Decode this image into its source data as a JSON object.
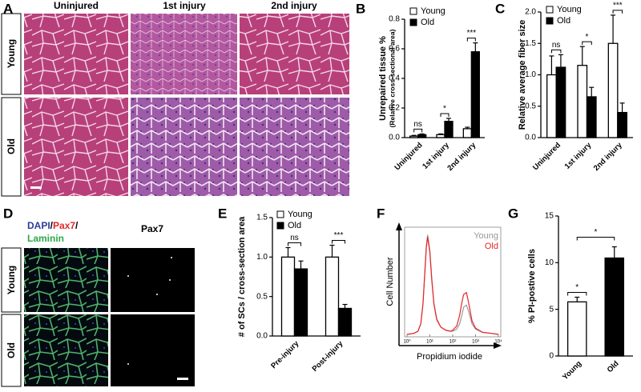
{
  "panel_labels": [
    "A",
    "B",
    "C",
    "D",
    "E",
    "F",
    "G"
  ],
  "figure_a": {
    "columns": [
      "Uninjured",
      "1st injury",
      "2nd injury"
    ],
    "rows": [
      "Young",
      "Old"
    ]
  },
  "figure_d": {
    "stain": [
      "DAPI",
      "/",
      "Pax7",
      "/",
      "Laminin"
    ],
    "channel": "Pax7",
    "rows": [
      "Young",
      "Old"
    ]
  },
  "chart_data": [
    {
      "type": "bar",
      "ylabel": "Unrepaired tissue %",
      "ylabel_sub": "(Relative cross-sectional area)",
      "categories": [
        "Uninjured",
        "1st injury",
        "2nd injury"
      ],
      "series": [
        {
          "name": "Young",
          "color": "#ffffff",
          "values": [
            0.01,
            0.02,
            0.06
          ],
          "errors": [
            0.005,
            0.005,
            0.01
          ]
        },
        {
          "name": "Old",
          "color": "#000000",
          "values": [
            0.02,
            0.11,
            0.58
          ],
          "errors": [
            0.005,
            0.02,
            0.06
          ]
        }
      ],
      "annotations": [
        "ns",
        "*",
        "***"
      ],
      "ylim": [
        0,
        0.8
      ],
      "yticks": [
        {
          "value": 0,
          "label": "0.0"
        },
        {
          "value": 0.2,
          "label": "0.2"
        },
        {
          "value": 0.4,
          "label": "0.4"
        },
        {
          "value": 0.6,
          "label": "0.6"
        },
        {
          "value": 0.8,
          "label": "0.8"
        }
      ]
    },
    {
      "type": "bar",
      "ylabel": "Relative average fiber size",
      "categories": [
        "Uninjured",
        "1st injury",
        "2nd injury"
      ],
      "series": [
        {
          "name": "Young",
          "color": "#ffffff",
          "values": [
            1.0,
            1.15,
            1.5
          ],
          "errors": [
            0.3,
            0.3,
            0.45
          ]
        },
        {
          "name": "Old",
          "color": "#000000",
          "values": [
            1.12,
            0.65,
            0.4
          ],
          "errors": [
            0.2,
            0.15,
            0.15
          ]
        }
      ],
      "annotations": [
        "ns",
        "*",
        "***"
      ],
      "ylim": [
        0,
        2
      ],
      "yticks": [
        {
          "value": 0,
          "label": "0.0"
        },
        {
          "value": 0.5,
          "label": "0.5"
        },
        {
          "value": 1,
          "label": "1.0"
        },
        {
          "value": 1.5,
          "label": "1.5"
        },
        {
          "value": 2,
          "label": "2.0"
        }
      ]
    },
    {
      "type": "bar",
      "ylabel": "# of SCs / cross-section area",
      "categories": [
        "Pre-injury",
        "Post-injury"
      ],
      "series": [
        {
          "name": "Young",
          "color": "#ffffff",
          "values": [
            1.0,
            1.0
          ],
          "errors": [
            0.12,
            0.15
          ]
        },
        {
          "name": "Old",
          "color": "#000000",
          "values": [
            0.85,
            0.35
          ],
          "errors": [
            0.1,
            0.05
          ]
        }
      ],
      "annotations": [
        "ns",
        "***"
      ],
      "ylim": [
        0,
        1.5
      ],
      "yticks": [
        {
          "value": 0,
          "label": "0.0"
        },
        {
          "value": 0.5,
          "label": "0.5"
        },
        {
          "value": 1,
          "label": "1.0"
        },
        {
          "value": 1.5,
          "label": "1.5"
        }
      ]
    },
    {
      "type": "line",
      "xlabel": "Propidium iodide",
      "ylabel": "Cell Number",
      "log_x": true,
      "legend": "upper right",
      "x": [
        1,
        2,
        3,
        4,
        5,
        6,
        7,
        8,
        10,
        12,
        15,
        20,
        30,
        50,
        80,
        100,
        150,
        200,
        250,
        300,
        400,
        500,
        700,
        1000,
        2000,
        5000,
        10000
      ],
      "series": [
        {
          "name": "Young",
          "color": "#999999",
          "values": [
            0,
            1,
            3,
            10,
            30,
            60,
            85,
            95,
            80,
            55,
            30,
            15,
            7,
            4,
            3,
            3,
            5,
            10,
            18,
            26,
            28,
            22,
            10,
            5,
            2,
            1,
            0
          ]
        },
        {
          "name": "Old",
          "color": "#e8262b",
          "values": [
            0,
            1,
            3,
            10,
            29,
            58,
            83,
            93,
            78,
            53,
            29,
            14,
            7,
            4,
            3,
            4,
            8,
            18,
            30,
            38,
            40,
            30,
            13,
            6,
            2,
            1,
            0
          ]
        }
      ],
      "xlim": [
        1,
        10000
      ],
      "ylim": [
        0,
        100
      ],
      "xticks": [
        {
          "value": 1,
          "label": "10⁰"
        },
        {
          "value": 10,
          "label": "10¹"
        },
        {
          "value": 100,
          "label": "10²"
        },
        {
          "value": 1000,
          "label": "10³"
        },
        {
          "value": 10000,
          "label": "10⁴"
        }
      ]
    },
    {
      "type": "bar",
      "ylabel": "% PI-postive cells",
      "categories": [
        "Young",
        "Old"
      ],
      "values": [
        5.8,
        10.5
      ],
      "errors": [
        0.5,
        1.2
      ],
      "colors": [
        "#ffffff",
        "#000000"
      ],
      "annotations": [
        "*"
      ],
      "ylim": [
        0,
        15
      ],
      "yticks": [
        0,
        5,
        10,
        15
      ]
    }
  ]
}
